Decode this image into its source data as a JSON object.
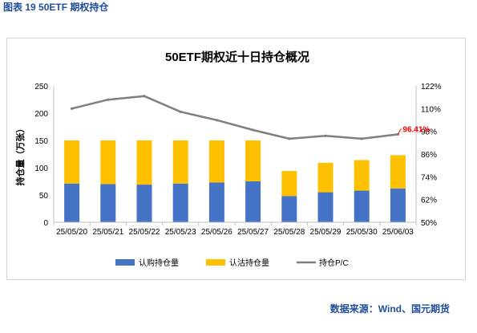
{
  "figure_label": "图表 19  50ETF 期权持仓",
  "source": "数据来源：Wind、国元期货",
  "colors": {
    "call": "#4472C4",
    "put": "#FFC000",
    "pc": "#7F7F7F",
    "label": "#FF0000"
  },
  "chart_data": {
    "type": "bar",
    "stacked": true,
    "title": "50ETF期权近十日持仓概况",
    "ylabel": "持仓量（万张）",
    "ylim": [
      0,
      250
    ],
    "yticks": [
      "0",
      "50",
      "100",
      "150",
      "200",
      "250"
    ],
    "y2lim": [
      50,
      122
    ],
    "y2ticks": [
      "50%",
      "62%",
      "74%",
      "86%",
      "98%",
      "110%",
      "122%"
    ],
    "categories": [
      "25/05/20",
      "25/05/21",
      "25/05/22",
      "25/05/23",
      "25/05/26",
      "25/05/27",
      "25/05/28",
      "25/05/29",
      "25/05/30",
      "25/06/03"
    ],
    "series": [
      {
        "name": "认购持仓量",
        "type": "bar",
        "values": [
          71,
          70,
          69,
          71,
          73,
          75,
          48,
          55,
          58,
          62
        ]
      },
      {
        "name": "认沽持仓量",
        "type": "bar",
        "values": [
          79,
          80,
          81,
          79,
          77,
          75,
          46,
          54,
          56,
          61
        ]
      },
      {
        "name": "持仓P/C",
        "type": "line",
        "axis": "right",
        "values": [
          110.0,
          114.7,
          116.6,
          108.3,
          103.9,
          98.7,
          94.1,
          95.6,
          94.1,
          96.41
        ]
      }
    ],
    "annotation": {
      "text": "96.41%",
      "index": 9
    },
    "legend": "bottom"
  }
}
